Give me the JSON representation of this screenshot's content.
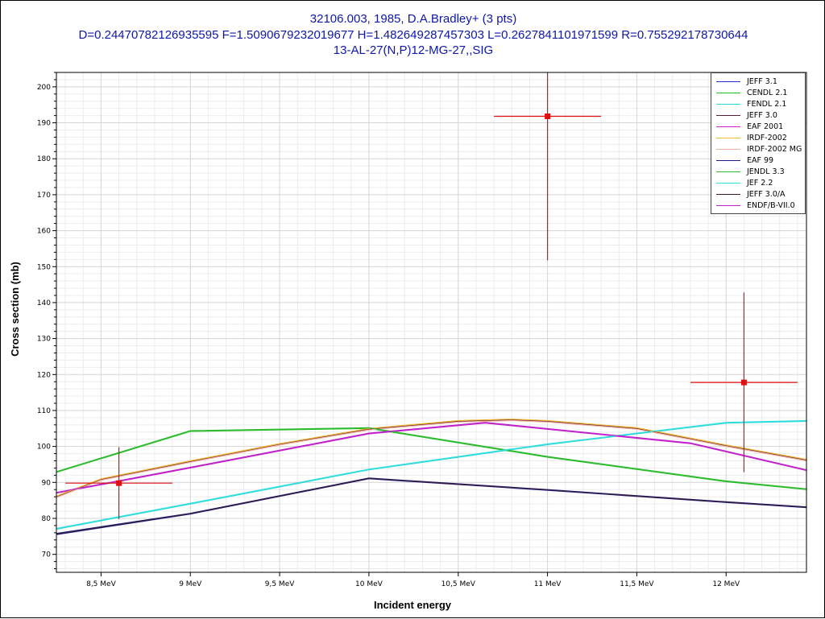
{
  "chart_data": {
    "type": "line",
    "title_lines": [
      "32106.003, 1985, D.A.Bradley+ (3 pts)",
      "D=0.24470782126935595 F=1.5090679232019677 H=1.482649287457303 L=0.2627841101971599 R=0.755292178730644",
      "13-AL-27(N,P)12-MG-27,,SIG"
    ],
    "xlabel": "Incident energy",
    "ylabel": "Cross section (mb)",
    "xlim": [
      8.25,
      12.45
    ],
    "ylim": [
      65,
      204
    ],
    "x_ticks": [
      {
        "value": 8.5,
        "label": "8,5 MeV"
      },
      {
        "value": 9.0,
        "label": "9 MeV"
      },
      {
        "value": 9.5,
        "label": "9,5 MeV"
      },
      {
        "value": 10.0,
        "label": "10 MeV"
      },
      {
        "value": 10.5,
        "label": "10,5 MeV"
      },
      {
        "value": 11.0,
        "label": "11 MeV"
      },
      {
        "value": 11.5,
        "label": "11,5 MeV"
      },
      {
        "value": 12.0,
        "label": "12 MeV"
      }
    ],
    "y_ticks": [
      70,
      80,
      90,
      100,
      110,
      120,
      130,
      140,
      150,
      160,
      170,
      180,
      190,
      200
    ],
    "grid": true,
    "legend_position": "top-right",
    "series": [
      {
        "name": "JEFF 3.1",
        "color": "#1f2fbf",
        "x": [
          8.25,
          9.0,
          10.0,
          11.0,
          12.0,
          12.45
        ],
        "y": [
          75.5,
          81.2,
          91.0,
          87.8,
          84.4,
          83.0
        ]
      },
      {
        "name": "CENDL 2.1",
        "color": "#22c022",
        "x": [
          8.25,
          9.0,
          10.0,
          11.0,
          12.0,
          12.45
        ],
        "y": [
          92.8,
          104.2,
          105.0,
          97.0,
          90.2,
          88.0
        ]
      },
      {
        "name": "FENDL 2.1",
        "color": "#2ad6d6",
        "x": [
          8.25,
          9.0,
          10.0,
          11.0,
          12.0,
          12.45
        ],
        "y": [
          77.0,
          84.0,
          93.5,
          100.5,
          106.5,
          107.0
        ]
      },
      {
        "name": "JEFF 3.0",
        "color": "#5a1a3a",
        "x": [
          8.25,
          8.5,
          9.0,
          9.5,
          10.0,
          10.5,
          10.8,
          11.0,
          11.5,
          12.0,
          12.45
        ],
        "y": [
          86.0,
          90.8,
          95.8,
          100.6,
          104.8,
          107.0,
          107.4,
          107.0,
          105.0,
          100.2,
          96.2
        ]
      },
      {
        "name": "EAF 2001",
        "color": "#cc22cc",
        "x": [
          8.25,
          9.0,
          10.0,
          10.65,
          11.8,
          12.45
        ],
        "y": [
          87.0,
          94.0,
          103.5,
          106.5,
          100.8,
          93.3
        ]
      },
      {
        "name": "IRDF-2002",
        "color": "#f0b830",
        "x": [
          8.25,
          8.5,
          9.0,
          9.5,
          10.0,
          10.5,
          10.8,
          11.0,
          11.5,
          12.0,
          12.45
        ],
        "y": [
          86.2,
          91.0,
          96.0,
          100.8,
          105.0,
          107.2,
          107.6,
          107.2,
          105.2,
          100.4,
          96.4
        ]
      },
      {
        "name": "IRDF-2002 MG",
        "color": "#f2b0a0",
        "x": [
          8.25,
          8.5,
          9.0,
          9.5,
          10.0,
          10.5,
          10.8,
          11.0,
          11.5,
          12.0,
          12.45
        ],
        "y": [
          85.8,
          90.6,
          95.6,
          100.4,
          104.6,
          106.8,
          107.2,
          106.8,
          104.8,
          100.0,
          96.0
        ]
      },
      {
        "name": "EAF 99",
        "color": "#1a1a8a",
        "x": [
          8.25,
          9.0,
          10.0,
          11.0,
          12.0,
          12.45
        ],
        "y": [
          75.8,
          81.4,
          91.2,
          88.0,
          84.6,
          83.2
        ]
      },
      {
        "name": "JENDL 3.3",
        "color": "#33b833",
        "x": [
          8.25,
          9.0,
          10.0,
          11.0,
          12.0,
          12.45
        ],
        "y": [
          93.0,
          104.4,
          105.2,
          97.2,
          90.4,
          88.2
        ]
      },
      {
        "name": "JEF 2.2",
        "color": "#33e0e0",
        "x": [
          8.25,
          9.0,
          10.0,
          11.0,
          12.0,
          12.45
        ],
        "y": [
          77.2,
          84.2,
          93.7,
          100.7,
          106.7,
          107.2
        ]
      },
      {
        "name": "JEFF 3.0/A",
        "color": "#3a1a2a",
        "x": [
          8.25,
          9.0,
          10.0,
          11.0,
          12.0,
          12.45
        ],
        "y": [
          75.6,
          81.3,
          91.1,
          87.9,
          84.5,
          83.1
        ]
      },
      {
        "name": "ENDF/B-VII.0",
        "color": "#b822c8",
        "x": [
          8.25,
          9.0,
          10.0,
          10.65,
          11.8,
          12.45
        ],
        "y": [
          87.2,
          94.2,
          103.7,
          106.7,
          101.0,
          93.5
        ]
      }
    ],
    "experimental_points": {
      "color": "#e01010",
      "points": [
        {
          "x": 8.6,
          "y": 89.8,
          "xerr": 0.3,
          "yerr": 10.0
        },
        {
          "x": 11.0,
          "y": 191.8,
          "xerr": 0.3,
          "yerr": 40.0
        },
        {
          "x": 12.1,
          "y": 117.8,
          "xerr": 0.3,
          "yerr": 25.0
        }
      ]
    }
  }
}
